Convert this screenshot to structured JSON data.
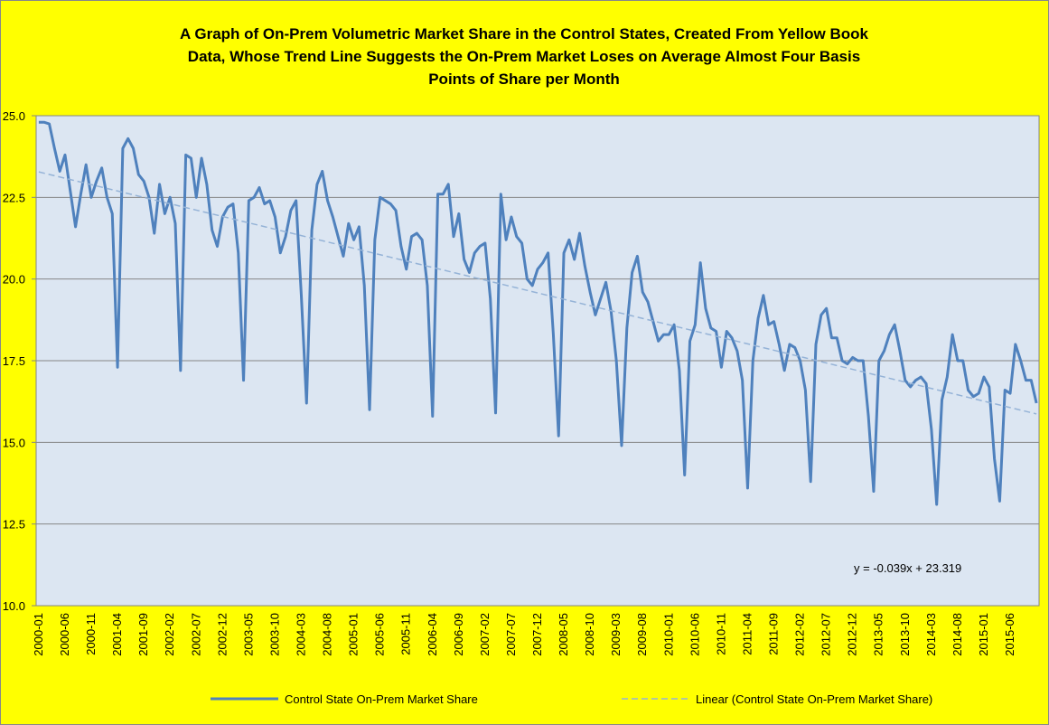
{
  "chart_data": {
    "type": "line",
    "title": [
      "A Graph of On-Prem Volumetric Market Share in the Control States, Created From Yellow Book",
      "Data, Whose Trend Line Suggests  the On-Prem Market Loses  on Average Almost Four Basis",
      "Points of Share per Month"
    ],
    "categories": [
      "2000-01",
      null,
      null,
      null,
      null,
      "2000-06",
      null,
      null,
      null,
      null,
      "2000-11",
      null,
      null,
      null,
      null,
      "2001-04",
      null,
      null,
      null,
      null,
      "2001-09",
      null,
      null,
      null,
      null,
      "2002-02",
      null,
      null,
      null,
      null,
      "2002-07",
      null,
      null,
      null,
      null,
      "2002-12",
      null,
      null,
      null,
      null,
      "2003-05",
      null,
      null,
      null,
      null,
      "2003-10",
      null,
      null,
      null,
      null,
      "2004-03",
      null,
      null,
      null,
      null,
      "2004-08",
      null,
      null,
      null,
      null,
      "2005-01",
      null,
      null,
      null,
      null,
      "2005-06",
      null,
      null,
      null,
      null,
      "2005-11",
      null,
      null,
      null,
      null,
      "2006-04",
      null,
      null,
      null,
      null,
      "2006-09",
      null,
      null,
      null,
      null,
      "2007-02",
      null,
      null,
      null,
      null,
      "2007-07",
      null,
      null,
      null,
      null,
      "2007-12",
      null,
      null,
      null,
      null,
      "2008-05",
      null,
      null,
      null,
      null,
      "2008-10",
      null,
      null,
      null,
      null,
      "2009-03",
      null,
      null,
      null,
      null,
      "2009-08",
      null,
      null,
      null,
      null,
      "2010-01",
      null,
      null,
      null,
      null,
      "2010-06",
      null,
      null,
      null,
      null,
      "2010-11",
      null,
      null,
      null,
      null,
      "2011-04",
      null,
      null,
      null,
      null,
      "2011-09",
      null,
      null,
      null,
      null,
      "2012-02",
      null,
      null,
      null,
      null,
      "2012-07",
      null,
      null,
      null,
      null,
      "2012-12",
      null,
      null,
      null,
      null,
      "2013-05",
      null,
      null,
      null,
      null,
      "2013-10",
      null,
      null,
      null,
      null,
      "2014-03",
      null,
      null,
      null,
      null,
      "2014-08",
      null,
      null,
      null,
      null,
      "2015-01",
      null,
      null,
      null,
      null,
      "2015-06",
      null,
      null,
      null,
      null,
      null
    ],
    "series": [
      {
        "name": "Control State On-Prem Market Share",
        "color": "#4f81bd",
        "values": [
          24.8,
          24.8,
          24.75,
          24.0,
          23.3,
          23.8,
          22.7,
          21.6,
          22.6,
          23.5,
          22.5,
          23.0,
          23.4,
          22.5,
          22.0,
          17.3,
          24.0,
          24.3,
          24.0,
          23.2,
          23.0,
          22.5,
          21.4,
          22.9,
          22.0,
          22.5,
          21.7,
          17.2,
          23.8,
          23.7,
          22.5,
          23.7,
          22.9,
          21.5,
          21.0,
          21.9,
          22.2,
          22.3,
          20.8,
          16.9,
          22.4,
          22.5,
          22.8,
          22.3,
          22.4,
          21.9,
          20.8,
          21.3,
          22.1,
          22.4,
          19.5,
          16.2,
          21.5,
          22.9,
          23.3,
          22.4,
          21.9,
          21.3,
          20.7,
          21.7,
          21.2,
          21.6,
          19.8,
          16.0,
          21.2,
          22.5,
          22.4,
          22.3,
          22.1,
          21.0,
          20.3,
          21.3,
          21.4,
          21.2,
          19.8,
          15.8,
          22.6,
          22.6,
          22.9,
          21.3,
          22.0,
          20.6,
          20.2,
          20.8,
          21.0,
          21.1,
          19.4,
          15.9,
          22.6,
          21.2,
          21.9,
          21.3,
          21.1,
          20.0,
          19.8,
          20.3,
          20.5,
          20.8,
          18.3,
          15.2,
          20.8,
          21.2,
          20.6,
          21.4,
          20.4,
          19.6,
          18.9,
          19.4,
          19.9,
          19.0,
          17.5,
          14.9,
          18.5,
          20.2,
          20.7,
          19.6,
          19.3,
          18.7,
          18.1,
          18.3,
          18.3,
          18.6,
          17.2,
          14.0,
          18.1,
          18.6,
          20.5,
          19.1,
          18.5,
          18.4,
          17.3,
          18.4,
          18.2,
          17.8,
          16.9,
          13.6,
          17.5,
          18.8,
          19.5,
          18.6,
          18.7,
          18.0,
          17.2,
          18.0,
          17.9,
          17.5,
          16.6,
          13.8,
          18.0,
          18.9,
          19.1,
          18.2,
          18.2,
          17.5,
          17.4,
          17.6,
          17.5,
          17.5,
          15.8,
          13.5,
          17.5,
          17.8,
          18.3,
          18.6,
          17.8,
          16.9,
          16.7,
          16.9,
          17.0,
          16.8,
          15.4,
          13.1,
          16.3,
          17.0,
          18.3,
          17.5,
          17.5,
          16.6,
          16.4,
          16.5,
          17.0,
          16.7,
          14.5,
          13.2,
          16.6,
          16.5,
          18.0,
          17.5,
          16.9,
          16.9,
          16.2
        ]
      },
      {
        "name": "Linear (Control State On-Prem Market Share)",
        "color": "#95b3d7",
        "dashed": true,
        "trend": {
          "slope": -0.039,
          "intercept": 23.319
        }
      }
    ],
    "annotation": "y = -0.039x + 23.319",
    "ylim": [
      10,
      25
    ],
    "yticks": [
      {
        "value": 10,
        "label": "10.0"
      },
      12.5,
      {
        "value": 15,
        "label": "15.0"
      },
      17.5,
      {
        "value": 20,
        "label": "20.0"
      },
      22.5,
      {
        "value": 25,
        "label": "25.0"
      }
    ],
    "grid": true,
    "legend": "bottom"
  }
}
